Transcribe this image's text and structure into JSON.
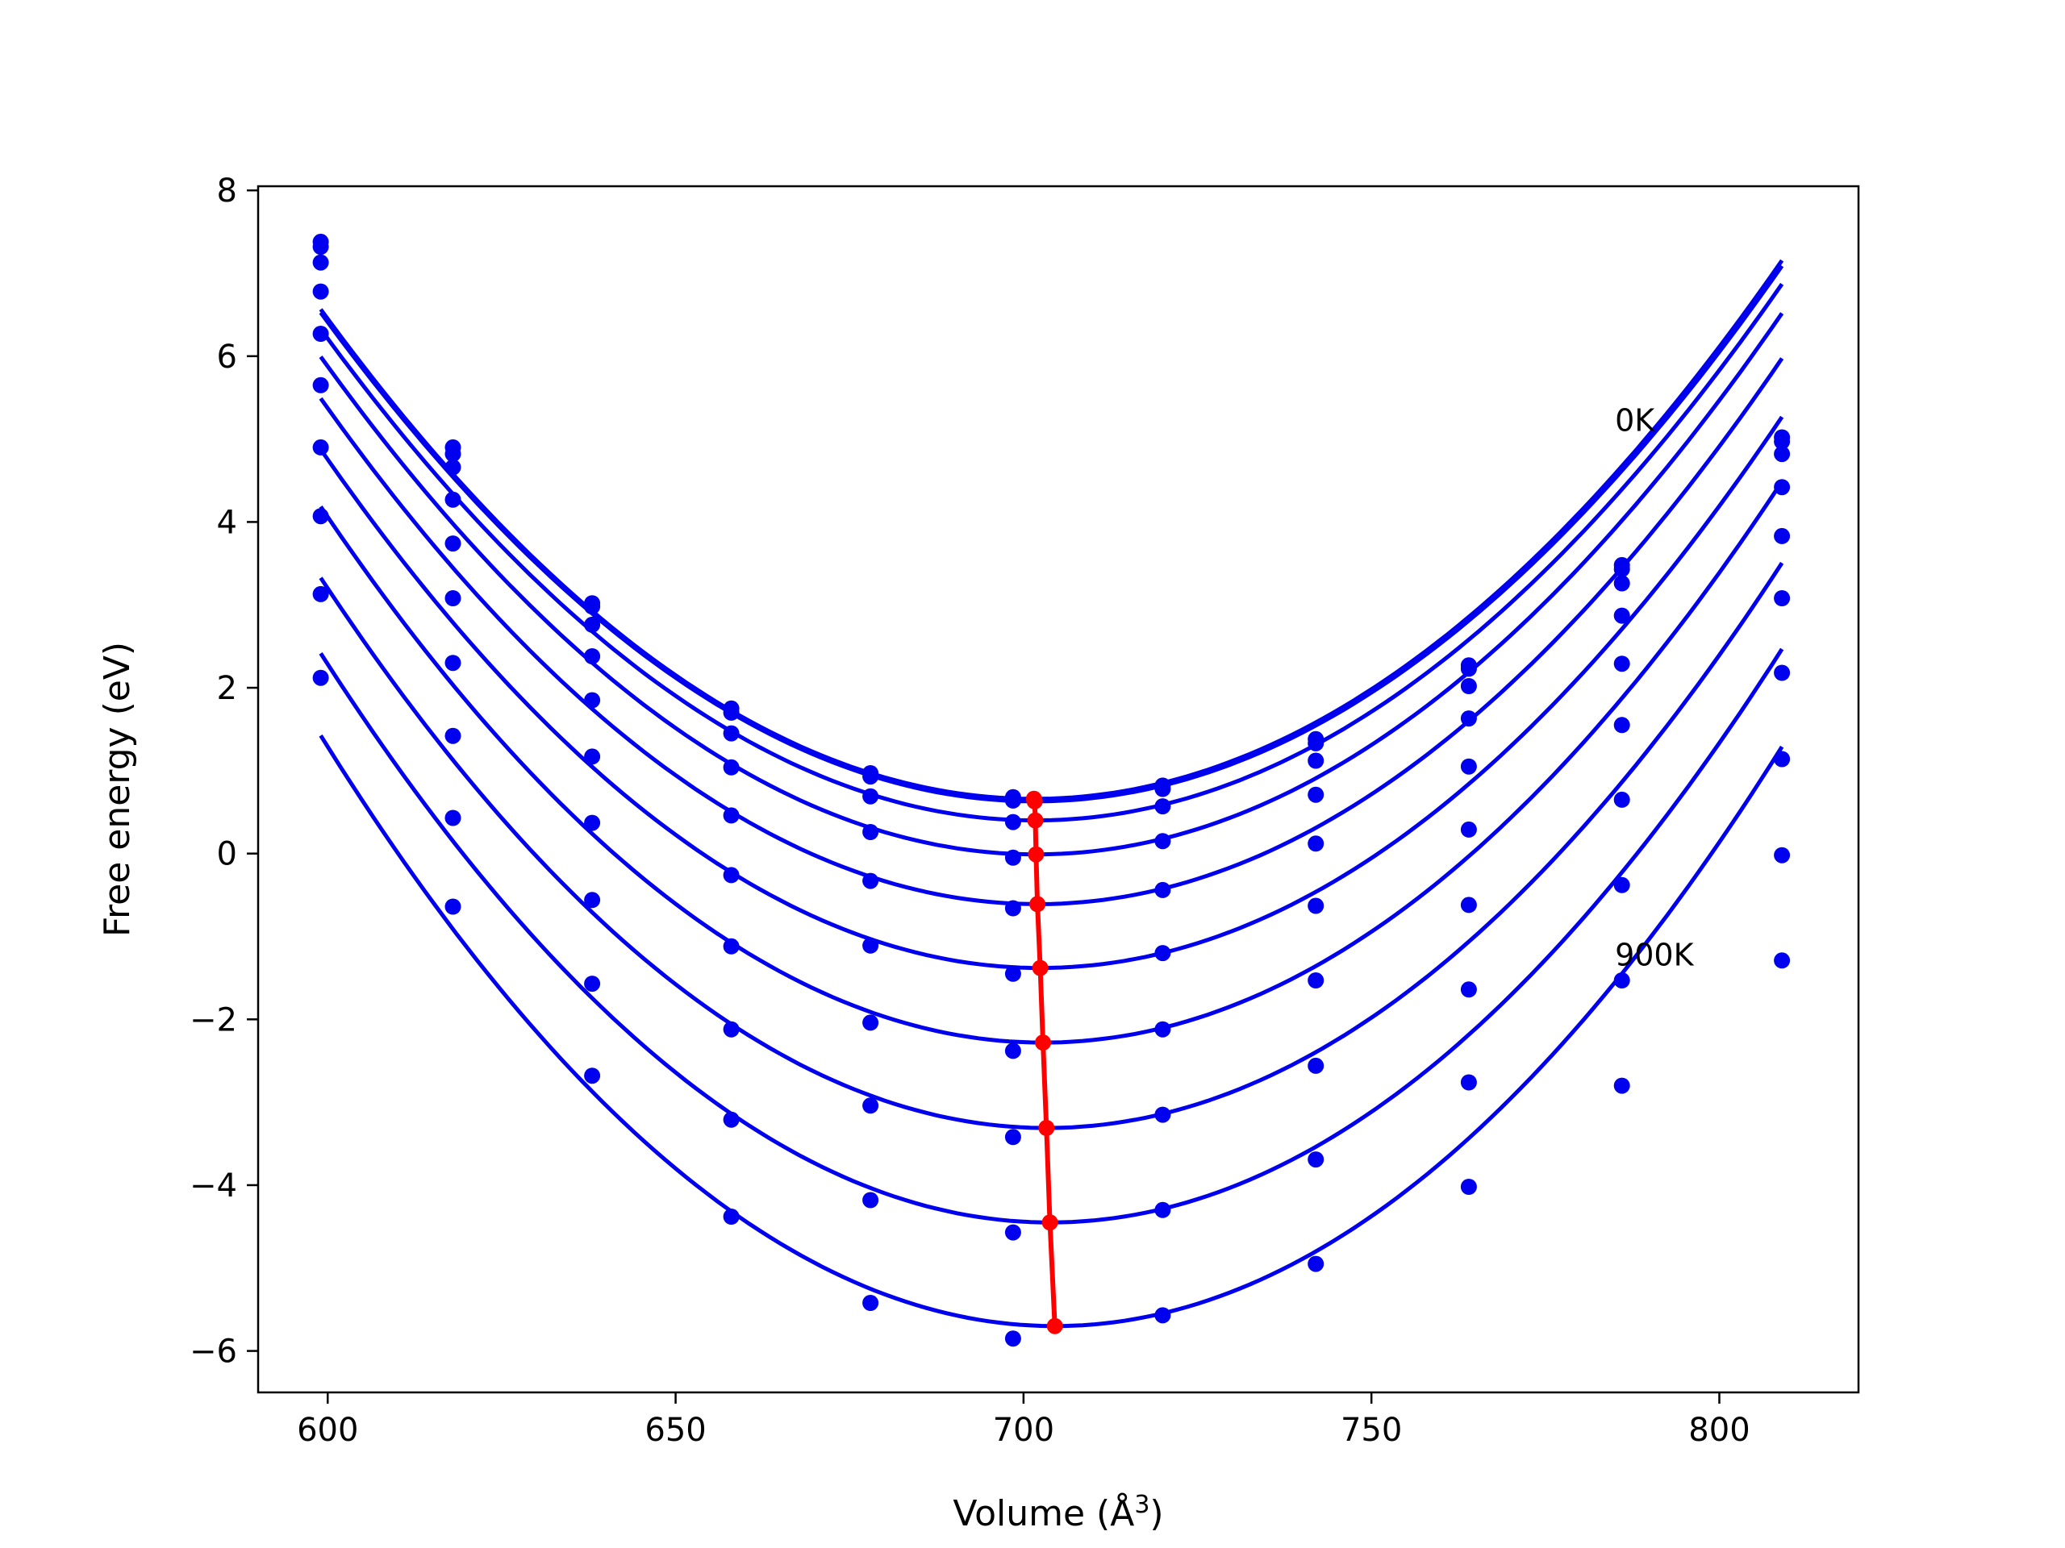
{
  "chart_data": {
    "type": "line",
    "title": "",
    "xlabel": "Volume (Å",
    "xlabel_sup": "3",
    "xlabel_close": ")",
    "ylabel": "Free energy (eV)",
    "xlim": [
      590,
      820
    ],
    "ylim": [
      -6.5,
      8.05
    ],
    "xticks": [
      600,
      650,
      700,
      750,
      800
    ],
    "yticks": [
      -6,
      -4,
      -2,
      0,
      2,
      4,
      6,
      8
    ],
    "grid": false,
    "legend": "none",
    "colors": {
      "curves": "#0000ee",
      "minima": "#ff0000"
    },
    "annotations": [
      {
        "text": "0K",
        "x": 785,
        "y": 5.1
      },
      {
        "text": "900K",
        "x": 785,
        "y": -1.35
      }
    ],
    "volumes": [
      599,
      618,
      638,
      658,
      678,
      698.5,
      720,
      742,
      764,
      786,
      809
    ],
    "series": [
      {
        "temperature_K": 0,
        "points": [
          7.38,
          4.9,
          3.02,
          1.75,
          0.97,
          0.68,
          0.82,
          1.38,
          2.27,
          3.48,
          5.02
        ],
        "fit": {
          "a": 0.000562,
          "v0": 701.5,
          "e0": 0.66
        }
      },
      {
        "temperature_K": 100,
        "points": [
          7.32,
          4.82,
          2.98,
          1.7,
          0.93,
          0.64,
          0.78,
          1.33,
          2.23,
          3.43,
          4.97
        ],
        "fit": {
          "a": 0.00056,
          "v0": 701.6,
          "e0": 0.63
        }
      },
      {
        "temperature_K": 200,
        "points": [
          7.13,
          4.66,
          2.76,
          1.45,
          0.69,
          0.38,
          0.57,
          1.12,
          2.02,
          3.26,
          4.82
        ],
        "fit": {
          "a": 0.000562,
          "v0": 701.7,
          "e0": 0.4
        }
      },
      {
        "temperature_K": 300,
        "points": [
          6.78,
          4.27,
          2.38,
          1.04,
          0.26,
          -0.05,
          0.15,
          0.71,
          1.63,
          2.87,
          4.42
        ],
        "fit": {
          "a": 0.000568,
          "v0": 701.8,
          "e0": -0.01
        }
      },
      {
        "temperature_K": 400,
        "points": [
          6.27,
          3.74,
          1.85,
          0.46,
          -0.33,
          -0.66,
          -0.44,
          0.12,
          1.05,
          2.29,
          3.83
        ],
        "fit": {
          "a": 0.000575,
          "v0": 702.0,
          "e0": -0.61
        }
      },
      {
        "temperature_K": 500,
        "points": [
          5.65,
          3.08,
          1.17,
          -0.26,
          -1.11,
          -1.45,
          -1.2,
          -0.63,
          0.29,
          1.55,
          3.08
        ],
        "fit": {
          "a": 0.000585,
          "v0": 702.4,
          "e0": -1.38
        }
      },
      {
        "temperature_K": 600,
        "points": [
          4.9,
          2.3,
          0.37,
          -1.12,
          -2.04,
          -2.38,
          -2.12,
          -1.53,
          -0.62,
          0.65,
          2.18
        ],
        "fit": {
          "a": 0.0006,
          "v0": 702.8,
          "e0": -2.28
        }
      },
      {
        "temperature_K": 700,
        "points": [
          4.07,
          1.42,
          -0.56,
          -2.12,
          -3.04,
          -3.42,
          -3.15,
          -2.56,
          -1.64,
          -0.38,
          1.14
        ],
        "fit": {
          "a": 0.00061,
          "v0": 703.3,
          "e0": -3.31
        }
      },
      {
        "temperature_K": 800,
        "points": [
          3.13,
          0.43,
          -1.57,
          -3.21,
          -4.18,
          -4.57,
          -4.3,
          -3.69,
          -2.76,
          -1.53,
          -0.02
        ],
        "fit": {
          "a": 0.000625,
          "v0": 703.8,
          "e0": -4.45
        }
      },
      {
        "temperature_K": 900,
        "points": [
          2.12,
          -0.64,
          -2.68,
          -4.38,
          -5.42,
          -5.85,
          -5.57,
          -4.95,
          -4.02,
          -2.8,
          -1.29
        ],
        "fit": {
          "a": 0.00064,
          "v0": 704.5,
          "e0": -5.7
        }
      }
    ],
    "minima_line": {
      "x": [
        701.5,
        701.6,
        701.7,
        701.8,
        702.0,
        702.4,
        702.8,
        703.3,
        703.8,
        704.5
      ],
      "y": [
        0.66,
        0.63,
        0.4,
        -0.01,
        -0.61,
        -1.38,
        -2.28,
        -3.31,
        -4.45,
        -5.7
      ]
    }
  }
}
